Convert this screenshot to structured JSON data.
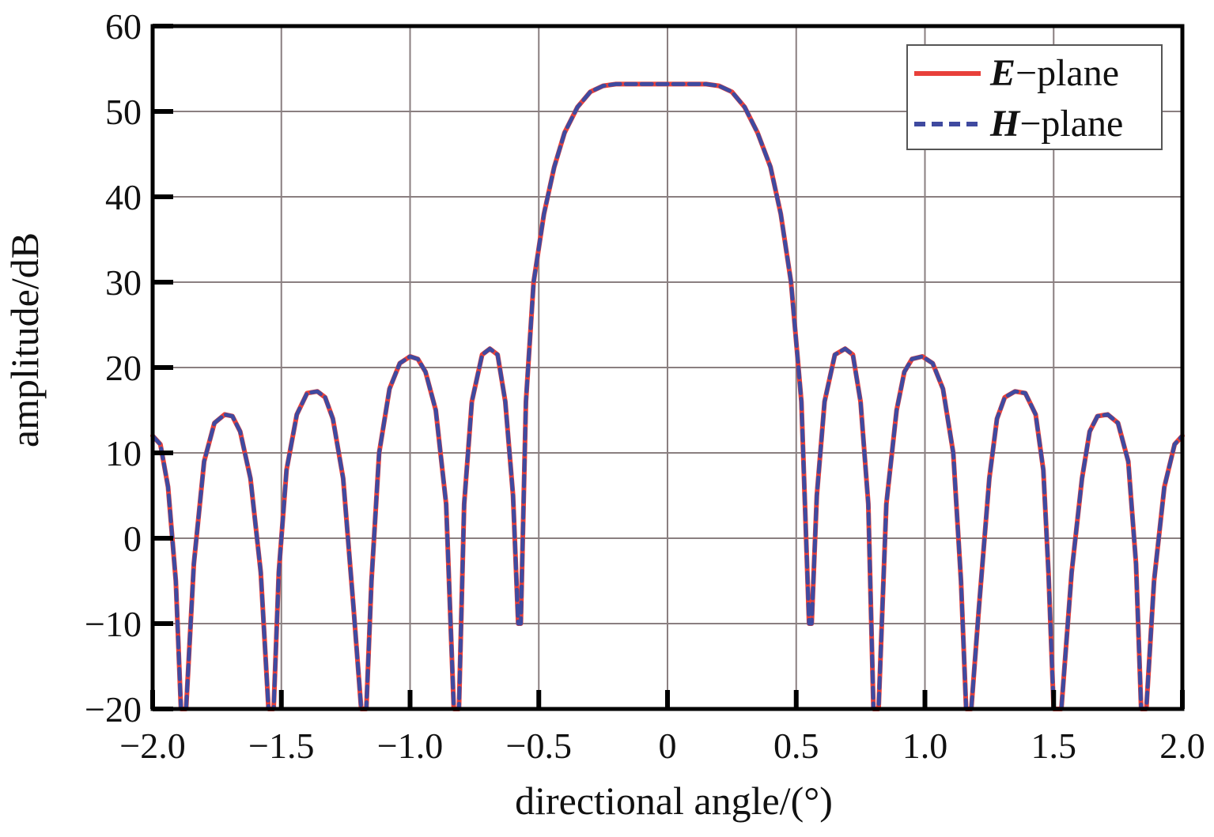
{
  "chart_data": {
    "type": "line",
    "xlabel": "directional angle/(°)",
    "ylabel": "amplitude/dB",
    "xlim": [
      -2.0,
      2.0
    ],
    "ylim": [
      -20,
      60
    ],
    "xticks": [
      -2.0,
      -1.5,
      -1.0,
      -0.5,
      0,
      0.5,
      1.0,
      1.5,
      2.0
    ],
    "xtick_labels": [
      "−2.0",
      "−1.5",
      "−1.0",
      "−0.5",
      "0",
      "0.5",
      "1.0",
      "1.5",
      "2.0"
    ],
    "yticks": [
      -20,
      -10,
      0,
      10,
      20,
      30,
      40,
      50,
      60
    ],
    "ytick_labels": [
      "−20",
      "−10",
      "0",
      "10",
      "20",
      "30",
      "40",
      "50",
      "60"
    ],
    "grid": true,
    "legend_position": "top-right",
    "series": [
      {
        "name_main": "E",
        "name_suffix": "−plane",
        "color": "#e8403a",
        "style": "solid",
        "x": [
          -2.0,
          -1.97,
          -1.94,
          -1.91,
          -1.89,
          -1.87,
          -1.84,
          -1.8,
          -1.76,
          -1.72,
          -1.69,
          -1.66,
          -1.62,
          -1.58,
          -1.55,
          -1.53,
          -1.51,
          -1.48,
          -1.44,
          -1.4,
          -1.36,
          -1.33,
          -1.3,
          -1.26,
          -1.22,
          -1.19,
          -1.17,
          -1.15,
          -1.12,
          -1.08,
          -1.04,
          -1.0,
          -0.97,
          -0.94,
          -0.9,
          -0.86,
          -0.83,
          -0.81,
          -0.79,
          -0.76,
          -0.72,
          -0.69,
          -0.66,
          -0.63,
          -0.6,
          -0.58,
          -0.57,
          -0.55,
          -0.52,
          -0.48,
          -0.44,
          -0.4,
          -0.35,
          -0.3,
          -0.25,
          -0.2,
          -0.15,
          -0.1,
          -0.05,
          0.0,
          0.05,
          0.1,
          0.15,
          0.2,
          0.25,
          0.3,
          0.35,
          0.4,
          0.44,
          0.48,
          0.52,
          0.55,
          0.56,
          0.58,
          0.61,
          0.65,
          0.69,
          0.72,
          0.75,
          0.78,
          0.8,
          0.82,
          0.85,
          0.89,
          0.92,
          0.95,
          0.99,
          1.03,
          1.07,
          1.11,
          1.14,
          1.16,
          1.18,
          1.21,
          1.25,
          1.28,
          1.31,
          1.35,
          1.39,
          1.43,
          1.46,
          1.48,
          1.5,
          1.53,
          1.57,
          1.61,
          1.64,
          1.67,
          1.71,
          1.75,
          1.79,
          1.82,
          1.84,
          1.86,
          1.89,
          1.93,
          1.97,
          2.0
        ],
        "y": [
          12,
          11,
          6,
          -5,
          -20,
          -20,
          -3,
          9,
          13.5,
          14.5,
          14.3,
          12.5,
          7,
          -4,
          -20,
          -20,
          -4,
          8,
          14.5,
          17,
          17.2,
          16.5,
          14,
          7,
          -8,
          -20,
          -20,
          -5,
          10,
          17.5,
          20.5,
          21.3,
          21,
          19.5,
          15,
          4,
          -20,
          -20,
          4,
          16,
          21.5,
          22.2,
          21.5,
          16,
          5,
          -10,
          -10,
          16,
          30,
          38,
          43.5,
          47.5,
          50.5,
          52.3,
          53,
          53.2,
          53.2,
          53.2,
          53.2,
          53.2,
          53.2,
          53.2,
          53.2,
          53,
          52.3,
          50.5,
          47.5,
          43.5,
          38,
          30,
          16,
          -10,
          -10,
          5,
          16,
          21.5,
          22.2,
          21.5,
          16,
          4,
          -20,
          -20,
          4,
          15,
          19.5,
          21,
          21.3,
          20.5,
          17.5,
          10,
          -5,
          -20,
          -20,
          -8,
          7,
          14,
          16.5,
          17.2,
          17,
          14.5,
          8,
          -4,
          -20,
          -20,
          -4,
          7,
          12.5,
          14.3,
          14.5,
          13.5,
          9,
          -3,
          -20,
          -20,
          -5,
          6,
          11,
          12
        ]
      },
      {
        "name_main": "H",
        "name_suffix": "−plane",
        "color": "#3f4aa0",
        "style": "dashed",
        "x": [
          -2.0,
          -1.97,
          -1.94,
          -1.91,
          -1.89,
          -1.87,
          -1.84,
          -1.8,
          -1.76,
          -1.72,
          -1.69,
          -1.66,
          -1.62,
          -1.58,
          -1.55,
          -1.53,
          -1.51,
          -1.48,
          -1.44,
          -1.4,
          -1.36,
          -1.33,
          -1.3,
          -1.26,
          -1.22,
          -1.19,
          -1.17,
          -1.15,
          -1.12,
          -1.08,
          -1.04,
          -1.0,
          -0.97,
          -0.94,
          -0.9,
          -0.86,
          -0.83,
          -0.81,
          -0.79,
          -0.76,
          -0.72,
          -0.69,
          -0.66,
          -0.63,
          -0.6,
          -0.58,
          -0.57,
          -0.55,
          -0.52,
          -0.48,
          -0.44,
          -0.4,
          -0.35,
          -0.3,
          -0.25,
          -0.2,
          -0.15,
          -0.1,
          -0.05,
          0.0,
          0.05,
          0.1,
          0.15,
          0.2,
          0.25,
          0.3,
          0.35,
          0.4,
          0.44,
          0.48,
          0.52,
          0.55,
          0.56,
          0.58,
          0.61,
          0.65,
          0.69,
          0.72,
          0.75,
          0.78,
          0.8,
          0.82,
          0.85,
          0.89,
          0.92,
          0.95,
          0.99,
          1.03,
          1.07,
          1.11,
          1.14,
          1.16,
          1.18,
          1.21,
          1.25,
          1.28,
          1.31,
          1.35,
          1.39,
          1.43,
          1.46,
          1.48,
          1.5,
          1.53,
          1.57,
          1.61,
          1.64,
          1.67,
          1.71,
          1.75,
          1.79,
          1.82,
          1.84,
          1.86,
          1.89,
          1.93,
          1.97,
          2.0
        ],
        "y": [
          12,
          11,
          6,
          -5,
          -20,
          -20,
          -3,
          9,
          13.5,
          14.5,
          14.3,
          12.5,
          7,
          -4,
          -20,
          -20,
          -4,
          8,
          14.5,
          17,
          17.2,
          16.5,
          14,
          7,
          -8,
          -20,
          -20,
          -5,
          10,
          17.5,
          20.5,
          21.3,
          21,
          19.5,
          15,
          4,
          -20,
          -20,
          4,
          16,
          21.5,
          22.2,
          21.5,
          16,
          5,
          -10,
          -10,
          16,
          30,
          38,
          43.5,
          47.5,
          50.5,
          52.3,
          53,
          53.2,
          53.2,
          53.2,
          53.2,
          53.2,
          53.2,
          53.2,
          53.2,
          53,
          52.3,
          50.5,
          47.5,
          43.5,
          38,
          30,
          16,
          -10,
          -10,
          5,
          16,
          21.5,
          22.2,
          21.5,
          16,
          4,
          -20,
          -20,
          4,
          15,
          19.5,
          21,
          21.3,
          20.5,
          17.5,
          10,
          -5,
          -20,
          -20,
          -8,
          7,
          14,
          16.5,
          17.2,
          17,
          14.5,
          8,
          -4,
          -20,
          -20,
          -4,
          7,
          12.5,
          14.3,
          14.5,
          13.5,
          9,
          -3,
          -20,
          -20,
          -5,
          6,
          11,
          12
        ]
      }
    ]
  }
}
